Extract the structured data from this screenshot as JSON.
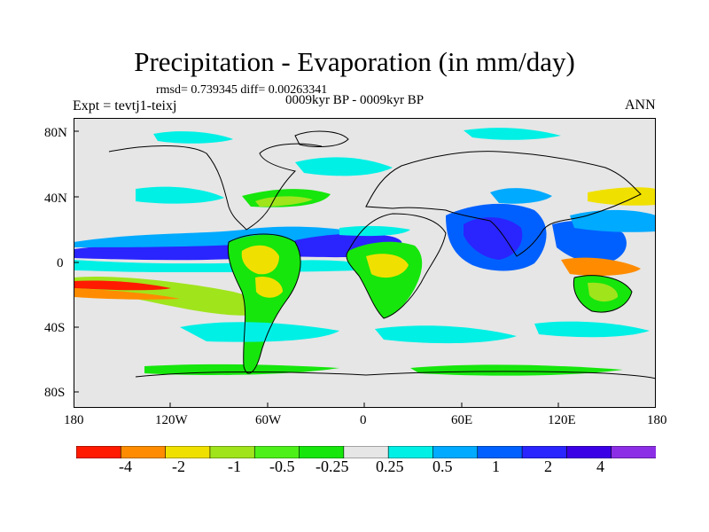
{
  "plot": {
    "title": "Precipitation - Evaporation (in mm/day)",
    "stats": "rmsd= 0.739345 diff= 0.00263341",
    "period": "0009kyr BP - 0009kyr BP",
    "experiment": "Expt = tevtj1-teixj",
    "season": "ANN"
  },
  "axes": {
    "lat_ticks": [
      "80N",
      "40N",
      "0",
      "40S",
      "80S"
    ],
    "lon_ticks": [
      "180",
      "120W",
      "60W",
      "0",
      "60E",
      "120E",
      "180"
    ]
  },
  "colorbar": {
    "labels": [
      "-4",
      "-2",
      "-1",
      "-0.5",
      "-0.25",
      "0.25",
      "0.5",
      "1",
      "2",
      "4"
    ],
    "colors": [
      "#ff1a00",
      "#ff8c00",
      "#f0e000",
      "#a0e41c",
      "#4ef01a",
      "#16e60c",
      "#e6e6e6",
      "#00f0e6",
      "#00aaff",
      "#0060ff",
      "#2a24ff",
      "#3c00e6",
      "#8c2ee6"
    ]
  },
  "map_colors": {
    "ocean_default": "#e6e6e6",
    "strong_positive": "#2a24ff",
    "positive": "#0060ff",
    "weak_positive": "#00f0e6",
    "weak_negative": "#16e60c",
    "negative": "#a0e41c",
    "strong_negative": "#f0e000",
    "very_negative": "#ff8c00",
    "extreme_negative": "#ff1a00",
    "coastline": "#000000"
  }
}
